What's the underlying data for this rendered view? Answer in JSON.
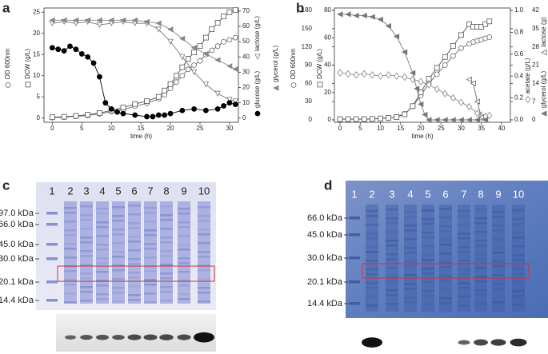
{
  "panel_labels": [
    "a",
    "b",
    "c",
    "d"
  ],
  "chart_data": [
    {
      "type": "line",
      "x_label": "time (h)",
      "xlim": [
        -1.4,
        31.5
      ],
      "xticks": [
        0,
        5,
        10,
        15,
        20,
        25,
        30
      ],
      "ylim": [
        -1,
        26
      ],
      "yticks": [
        0,
        5,
        10,
        15,
        20,
        25
      ],
      "y2lim": [
        -2.7,
        72
      ],
      "y2ticks": [
        0,
        10,
        20,
        30,
        40,
        50,
        60,
        70
      ],
      "series": [
        {
          "name": "OD 600nm",
          "color": "#666666",
          "marker": "circle",
          "axis": "y",
          "x": [
            0,
            2,
            4,
            6,
            8,
            10,
            12,
            14,
            16,
            18,
            19,
            20,
            21,
            22,
            23,
            24,
            25,
            26,
            27,
            28,
            29,
            30,
            31
          ],
          "values": [
            0.1,
            0.2,
            0.4,
            0.6,
            1,
            1.5,
            2,
            2.8,
            3.5,
            4.5,
            5.5,
            7,
            8.5,
            10,
            11.5,
            12.5,
            13.5,
            15,
            16,
            17,
            18,
            18.5,
            19
          ]
        },
        {
          "name": "DCW (g/L)",
          "color": "#555555",
          "marker": "square",
          "axis": "y",
          "x": [
            0,
            2,
            4,
            6,
            8,
            10,
            12,
            14,
            16,
            18,
            19,
            20,
            21,
            22,
            23,
            24,
            25,
            26,
            27,
            28,
            29,
            30,
            31
          ],
          "values": [
            0.2,
            0.3,
            0.5,
            0.8,
            1.2,
            1.8,
            2.5,
            3.3,
            4,
            5,
            6.5,
            8,
            10,
            12,
            14,
            15.5,
            17,
            19,
            21,
            22.5,
            24,
            25,
            25.5
          ]
        },
        {
          "name": "lactose (g/L)",
          "color": "#777777",
          "marker": "triangle-down",
          "axis": "y2",
          "x": [
            0,
            2,
            4,
            6,
            8,
            10,
            12,
            14,
            16,
            18,
            20,
            22,
            24,
            26,
            28,
            30,
            31
          ],
          "values": [
            62,
            63,
            62,
            63,
            61,
            62,
            63,
            62,
            62,
            58,
            50,
            40,
            30,
            22,
            16,
            12,
            11
          ]
        },
        {
          "name": "glucose (g/L)",
          "color": "#000000",
          "marker": "circle-filled",
          "axis": "y2",
          "x": [
            0,
            1,
            2,
            3,
            4,
            5,
            6,
            7,
            8,
            9,
            10,
            11,
            12,
            14,
            16,
            17,
            18,
            19,
            20,
            22,
            24,
            26,
            28,
            29,
            30,
            31
          ],
          "values": [
            46,
            45,
            44,
            47,
            45,
            42,
            40,
            36,
            27,
            10,
            6,
            4,
            3,
            2,
            1,
            1,
            2,
            2,
            3,
            5,
            6,
            5,
            6,
            8,
            10,
            9
          ]
        },
        {
          "name": "glycerol (g/L)",
          "color": "#888888",
          "marker": "triangle-left",
          "axis": "y2",
          "x": [
            0,
            2,
            4,
            6,
            8,
            10,
            12,
            14,
            16,
            18,
            20,
            22,
            24,
            26,
            28,
            30,
            31
          ],
          "values": [
            64,
            64,
            64,
            64,
            64,
            64,
            64,
            64,
            63,
            62,
            58,
            52,
            46,
            42,
            38,
            34,
            32
          ]
        }
      ]
    },
    {
      "type": "line",
      "x_label": "time (h)",
      "xlim": [
        -1.4,
        42.2
      ],
      "xticks": [
        0,
        5,
        10,
        15,
        20,
        25,
        30,
        35,
        40
      ],
      "ylim": [
        -4,
        184
      ],
      "yticks": [
        0,
        30,
        60,
        90,
        120,
        150,
        180
      ],
      "y3lim": [
        -1.8,
        81.8
      ],
      "y3ticks": [
        0,
        20,
        40,
        60,
        80
      ],
      "y2lim": [
        -0.022,
        1.022
      ],
      "y2ticks": [
        {
          "value": 0,
          "label": "0.0"
        },
        0.2,
        0.4,
        0.6,
        0.8,
        {
          "value": 1,
          "label": "1.0"
        }
      ],
      "y4lim": [
        -0.92,
        42.92
      ],
      "y4ticks": [
        0,
        7,
        14,
        21,
        28,
        35,
        42
      ],
      "series": [
        {
          "name": "OD 600nm",
          "color": "#666666",
          "marker": "circle",
          "axis": "y",
          "x": [
            0,
            2,
            4,
            6,
            8,
            10,
            12,
            14,
            16,
            18,
            20,
            22,
            24,
            26,
            28,
            30,
            32,
            33,
            34,
            35,
            36,
            37
          ],
          "values": [
            1,
            1,
            1,
            1,
            1.5,
            2,
            3,
            5,
            10,
            22,
            40,
            60,
            75,
            90,
            105,
            118,
            125,
            128,
            130,
            132,
            134,
            136
          ]
        },
        {
          "name": "DCW (g/L)",
          "color": "#555555",
          "marker": "square",
          "axis": "y3",
          "x": [
            0,
            2,
            4,
            6,
            8,
            10,
            12,
            14,
            16,
            18,
            20,
            22,
            24,
            26,
            28,
            30,
            32,
            33,
            34,
            35,
            36,
            37
          ],
          "values": [
            0.5,
            0.5,
            0.5,
            0.5,
            0.7,
            1,
            1.5,
            2,
            4,
            10,
            20,
            30,
            38,
            46,
            54,
            62,
            70,
            68,
            68,
            68,
            70,
            72
          ]
        },
        {
          "name": "acetate (g/L)",
          "color": "#888888",
          "marker": "diamond",
          "axis": "y2",
          "x": [
            0,
            2,
            4,
            6,
            8,
            10,
            12,
            14,
            16,
            18,
            20,
            22,
            24,
            26,
            28,
            30,
            32,
            34,
            35,
            36,
            37
          ],
          "values": [
            0.43,
            0.42,
            0.41,
            0.42,
            0.41,
            0.4,
            0.41,
            0.4,
            0.39,
            0.37,
            0.35,
            0.32,
            0.28,
            0.24,
            0.2,
            0.16,
            0.12,
            0.06,
            0.04,
            0.03,
            0.04
          ]
        },
        {
          "name": "lactose (g)",
          "color": "#666666",
          "marker": "triangle-left-open",
          "axis": "y4",
          "x": [
            32,
            33,
            34,
            35,
            36
          ],
          "values": [
            15.5,
            14,
            7,
            1,
            0
          ]
        },
        {
          "name": "glycerol (g/L)",
          "color": "#777777",
          "marker": "triangle-left",
          "axis": "y4",
          "x": [
            0,
            2,
            4,
            6,
            8,
            10,
            12,
            14,
            16,
            18,
            19,
            20,
            21,
            22,
            24,
            26,
            28,
            30,
            32,
            34,
            36
          ],
          "values": [
            40.5,
            40.5,
            40,
            40,
            39.5,
            38.5,
            36,
            32,
            26,
            18,
            12,
            6,
            2,
            0,
            0,
            0,
            0,
            0,
            0,
            0,
            0
          ]
        }
      ]
    }
  ],
  "gels": [
    {
      "lanes": [
        "1",
        "2",
        "3",
        "4",
        "5",
        "6",
        "7",
        "8",
        "9",
        "10"
      ],
      "markers": [
        "97.0 kDa",
        "66.0 kDa",
        "45.0 kDa",
        "30.0 kDa",
        "20.1 kDa",
        "14.4 kDa"
      ]
    },
    {
      "lanes": [
        "1",
        "2",
        "3",
        "4",
        "5",
        "6",
        "7",
        "8",
        "9",
        "10"
      ],
      "markers": [
        "66.0 kDa",
        "45.0 kDa",
        "30.0 kDa",
        "20.1 kDa",
        "14.4 kDa"
      ]
    }
  ]
}
